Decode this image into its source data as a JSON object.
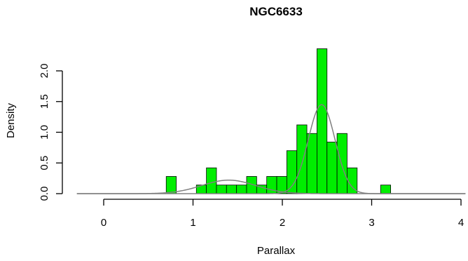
{
  "chart_data": {
    "type": "histogram",
    "title": "NGC6633",
    "xlabel": "Parallax",
    "ylabel": "Density",
    "xlim": [
      -0.3,
      4.05
    ],
    "ylim": [
      0,
      2.42
    ],
    "x_ticks": [
      0,
      1,
      2,
      3,
      4
    ],
    "x_tick_labels": [
      "0",
      "1",
      "2",
      "3",
      "4"
    ],
    "y_ticks": [
      0,
      0.5,
      1,
      1.5,
      2
    ],
    "y_tick_labels": [
      "0.0",
      "0.5",
      "1.0",
      "1.5",
      "2.0"
    ],
    "grid": false,
    "bin_width": 0.1125,
    "bins": [
      {
        "x0": 0.7,
        "x1": 0.8125,
        "density": 0.28
      },
      {
        "x0": 1.0375,
        "x1": 1.15,
        "density": 0.14
      },
      {
        "x0": 1.15,
        "x1": 1.2625,
        "density": 0.42
      },
      {
        "x0": 1.2625,
        "x1": 1.375,
        "density": 0.14
      },
      {
        "x0": 1.375,
        "x1": 1.4875,
        "density": 0.14
      },
      {
        "x0": 1.4875,
        "x1": 1.6,
        "density": 0.14
      },
      {
        "x0": 1.6,
        "x1": 1.7125,
        "density": 0.28
      },
      {
        "x0": 1.7125,
        "x1": 1.825,
        "density": 0.14
      },
      {
        "x0": 1.825,
        "x1": 1.9375,
        "density": 0.28
      },
      {
        "x0": 1.9375,
        "x1": 2.05,
        "density": 0.28
      },
      {
        "x0": 2.05,
        "x1": 2.1625,
        "density": 0.7
      },
      {
        "x0": 2.1625,
        "x1": 2.275,
        "density": 1.12
      },
      {
        "x0": 2.275,
        "x1": 2.3875,
        "density": 0.98
      },
      {
        "x0": 2.3875,
        "x1": 2.5,
        "density": 2.36
      },
      {
        "x0": 2.5,
        "x1": 2.6125,
        "density": 0.84
      },
      {
        "x0": 2.6125,
        "x1": 2.725,
        "density": 0.98
      },
      {
        "x0": 2.725,
        "x1": 2.8375,
        "density": 0.42
      },
      {
        "x0": 3.1,
        "x1": 3.2125,
        "density": 0.14
      }
    ],
    "curves": [
      {
        "type": "normal",
        "mean": 1.4,
        "sd": 0.3,
        "peak": 0.22,
        "color": "#808080"
      },
      {
        "type": "normal",
        "mean": 2.44,
        "sd": 0.15,
        "peak": 1.45,
        "color": "#808080"
      }
    ],
    "bar_color": "#00ee00",
    "edge_color": "#000000"
  }
}
